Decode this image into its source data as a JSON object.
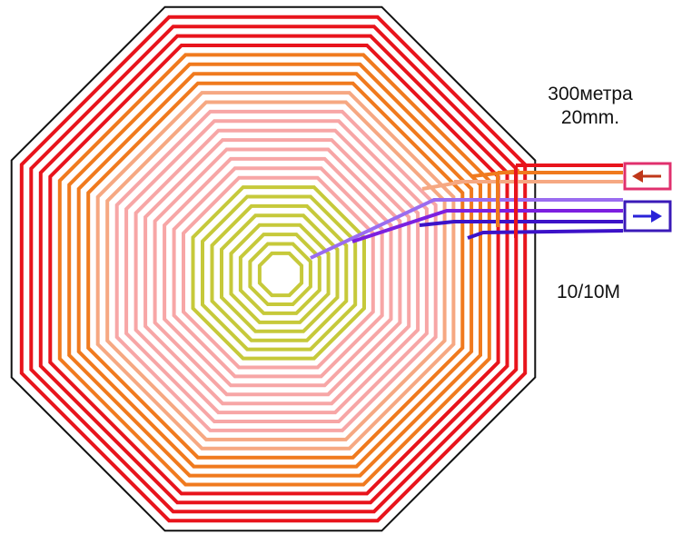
{
  "labels": {
    "length": "300метра",
    "width": "20mm.",
    "spec": "10/10M"
  },
  "colors": {
    "outline": "#111111",
    "red": "#e8141c",
    "orange": "#f07a1e",
    "peach": "#f6a882",
    "pink": "#f7a6a6",
    "olive": "#c6c93a",
    "violet": "#9a6cf0",
    "purple": "#7c1fe0",
    "indigo": "#3c12c8",
    "out_box": "#e0306e",
    "out_arrow": "#c0381a",
    "in_box": "#3a1ab8",
    "in_arrow": "#2a22d8"
  },
  "diagram": {
    "shape": "octagon",
    "icons": [
      "arrow-left-icon",
      "arrow-right-icon"
    ]
  }
}
